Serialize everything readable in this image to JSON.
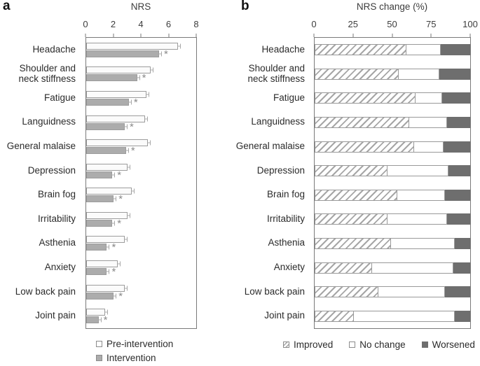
{
  "figure": {
    "panel_a": {
      "label": "a"
    },
    "panel_b": {
      "label": "b"
    }
  },
  "colors": {
    "pre_intervention_fill": "#fbfbfb",
    "intervention_fill": "#acacac",
    "worsened_fill": "#6e6e6e",
    "hatch_line": "#a6a6a6",
    "bar_border": "#9c9c9c",
    "frame": "#7a7a7a",
    "error_bar": "#a8a8a8",
    "asterisk": "#8a8a8a"
  },
  "chart_data": [
    {
      "type": "bar",
      "orientation": "horizontal",
      "title": "NRS",
      "categories": [
        "Headache",
        "Shoulder and neck stiffness",
        "Fatigue",
        "Languidness",
        "General malaise",
        "Depression",
        "Brain fog",
        "Irritability",
        "Asthenia",
        "Anxiety",
        "Low back pain",
        "Joint pain"
      ],
      "series": [
        {
          "name": "Pre-intervention",
          "values": [
            6.7,
            4.7,
            4.4,
            4.3,
            4.5,
            3.0,
            3.3,
            3.0,
            2.8,
            2.3,
            2.8,
            1.4
          ]
        },
        {
          "name": "Intervention",
          "values": [
            5.3,
            3.7,
            3.1,
            2.8,
            2.9,
            1.9,
            2.0,
            1.9,
            1.5,
            1.5,
            2.0,
            0.9
          ]
        }
      ],
      "xlim": [
        0,
        8
      ],
      "x_ticks": [
        0,
        2,
        4,
        6,
        8
      ],
      "error_bars": true,
      "error_approx": 0.1,
      "significance_marker": "*",
      "significant": [
        true,
        true,
        true,
        true,
        true,
        true,
        true,
        true,
        true,
        true,
        true,
        true
      ],
      "grid": false,
      "legend_position": "bottom-left"
    },
    {
      "type": "stacked-bar",
      "orientation": "horizontal",
      "title": "NRS change (%)",
      "categories": [
        "Headache",
        "Shoulder and neck stiffness",
        "Fatigue",
        "Languidness",
        "General malaise",
        "Depression",
        "Brain fog",
        "Irritability",
        "Asthenia",
        "Anxiety",
        "Low back pain",
        "Joint pain"
      ],
      "series": [
        {
          "name": "Improved",
          "values": [
            59,
            54,
            65,
            61,
            64,
            47,
            53,
            47,
            49,
            37,
            41,
            25
          ]
        },
        {
          "name": "No change",
          "values": [
            22,
            26,
            17,
            24,
            19,
            39,
            31,
            38,
            41,
            52,
            43,
            65
          ]
        },
        {
          "name": "Worsened",
          "values": [
            19,
            20,
            18,
            15,
            17,
            14,
            16,
            15,
            10,
            11,
            16,
            10
          ]
        }
      ],
      "xlim": [
        0,
        100
      ],
      "x_ticks": [
        0,
        25,
        50,
        75,
        100
      ],
      "grid": false,
      "legend_position": "bottom"
    }
  ]
}
